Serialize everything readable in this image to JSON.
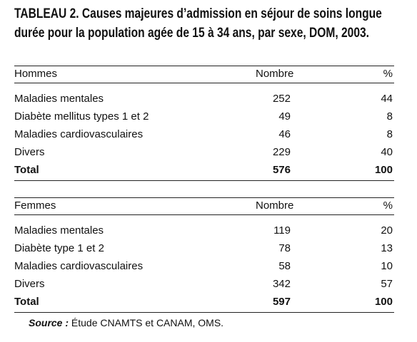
{
  "title": "TABLEAU 2. Causes majeures d’admission en séjour de soins longue durée pour la population agée de 15 à 34 ans, par sexe, DOM, 2003.",
  "sections": [
    {
      "header": [
        "Hommes",
        "Nombre",
        "%"
      ],
      "rows": [
        [
          "Maladies mentales",
          252,
          44
        ],
        [
          "Diabète mellitus types 1 et 2",
          49,
          8
        ],
        [
          "Maladies cardiovasculaires",
          46,
          8
        ],
        [
          "Divers",
          229,
          40
        ]
      ],
      "total": [
        "Total",
        576,
        100
      ]
    },
    {
      "header": [
        "Femmes",
        "Nombre",
        "%"
      ],
      "rows": [
        [
          "Maladies mentales",
          119,
          20
        ],
        [
          "Diabète type 1 et 2",
          78,
          13
        ],
        [
          "Maladies cardiovasculaires",
          58,
          10
        ],
        [
          "Divers",
          342,
          57
        ]
      ],
      "total": [
        "Total",
        597,
        100
      ]
    }
  ],
  "source": {
    "label": "Source :",
    "text": "Étude CNAMTS et CANAM, OMS."
  }
}
